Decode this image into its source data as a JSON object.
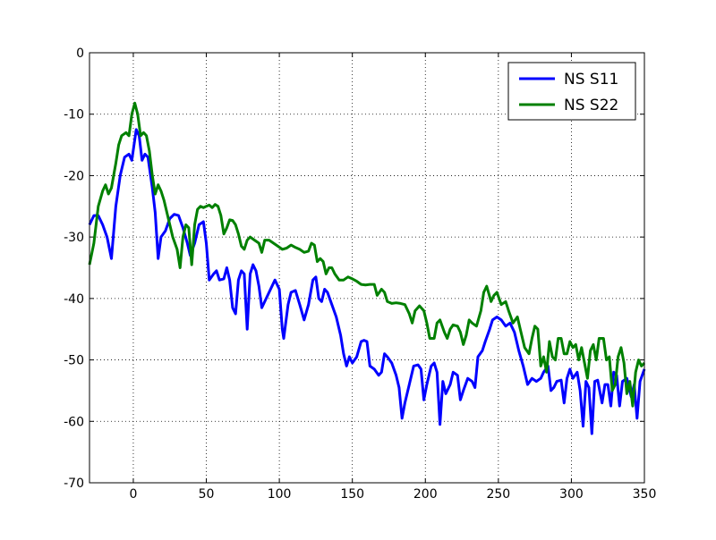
{
  "chart_data": {
    "type": "line",
    "xlim": [
      -30,
      350
    ],
    "xticks": [
      0,
      50,
      100,
      150,
      200,
      250,
      300,
      350
    ],
    "ylim": [
      -70,
      0
    ],
    "yticks": [
      -70,
      -60,
      -50,
      -40,
      -30,
      -20,
      -10,
      0
    ],
    "grid": true,
    "legend": "upper right",
    "series": [
      {
        "name": "NS S11",
        "color": "#0000ff",
        "x": [
          -30,
          -27,
          -24,
          -21,
          -18,
          -15,
          -12,
          -9,
          -6,
          -3,
          -1,
          2,
          4,
          6,
          8,
          10,
          13,
          15,
          17,
          19,
          22,
          25,
          28,
          31,
          34,
          37,
          39,
          42,
          45,
          48,
          50,
          52,
          55,
          57,
          59,
          62,
          64,
          66,
          68,
          70,
          72,
          74,
          76,
          78,
          80,
          82,
          84,
          86,
          88,
          91,
          94,
          97,
          100,
          102,
          103,
          106,
          108,
          111,
          114,
          117,
          120,
          123,
          125,
          127,
          129,
          131,
          133,
          136,
          139,
          142,
          144,
          146,
          148,
          150,
          153,
          156,
          158,
          160,
          162,
          165,
          168,
          170,
          172,
          174,
          177,
          180,
          182,
          184,
          186,
          189,
          192,
          195,
          197,
          199,
          201,
          204,
          206,
          208,
          210,
          212,
          214,
          217,
          219,
          222,
          224,
          226,
          229,
          232,
          234,
          236,
          239,
          241,
          244,
          246,
          249,
          252,
          255,
          258,
          261,
          264,
          267,
          270,
          273,
          276,
          279,
          281,
          284,
          286,
          288,
          290,
          293,
          295,
          297,
          299,
          301,
          304,
          306,
          308,
          310,
          312,
          314,
          316,
          318,
          321,
          323,
          325,
          327,
          329,
          331,
          333,
          335,
          338,
          341,
          343,
          345,
          347,
          350
        ],
        "values": [
          -28,
          -26.5,
          -26.5,
          -28,
          -30,
          -33.5,
          -25,
          -20,
          -17,
          -16.5,
          -17.5,
          -12.5,
          -13.5,
          -17.5,
          -16.5,
          -17,
          -22,
          -26,
          -33.5,
          -30,
          -29,
          -27,
          -26.3,
          -26.5,
          -28.5,
          -31,
          -33,
          -31,
          -28,
          -27.5,
          -31,
          -37,
          -36,
          -35.5,
          -37,
          -36.8,
          -35,
          -37,
          -41.5,
          -42.5,
          -37,
          -35.5,
          -36,
          -45,
          -36,
          -34.5,
          -35.5,
          -38,
          -41.5,
          -40,
          -38.5,
          -37,
          -38.5,
          -45,
          -46.5,
          -41,
          -39,
          -38.7,
          -41,
          -43.5,
          -41,
          -37,
          -36.5,
          -40,
          -40.5,
          -38.5,
          -39,
          -41,
          -43,
          -46,
          -49,
          -51,
          -49.5,
          -50.5,
          -49.5,
          -47,
          -46.8,
          -47,
          -51,
          -51.5,
          -52.5,
          -52,
          -49,
          -49.5,
          -50.5,
          -52.5,
          -54.5,
          -59.5,
          -57,
          -54,
          -51,
          -50.8,
          -51.5,
          -56.5,
          -54,
          -51,
          -50.5,
          -52,
          -60.5,
          -53.5,
          -55.5,
          -54,
          -52,
          -52.5,
          -56.5,
          -55,
          -53,
          -53.5,
          -54.5,
          -49.5,
          -48.5,
          -47,
          -45,
          -43.5,
          -43,
          -43.5,
          -44.5,
          -44,
          -45.5,
          -48.5,
          -51,
          -54,
          -53,
          -53.5,
          -53,
          -52,
          -51,
          -55,
          -54.5,
          -53.5,
          -53.3,
          -57,
          -53,
          -51.5,
          -53,
          -52,
          -55,
          -60.8,
          -53.5,
          -54.5,
          -62,
          -53.5,
          -53.3,
          -57,
          -54,
          -54,
          -57.5,
          -52,
          -52.5,
          -57.5,
          -53.5,
          -53,
          -56,
          -54,
          -59.5,
          -53.5,
          -51.5
        ]
      },
      {
        "name": "NS S22",
        "color": "#008000",
        "x": [
          -30,
          -27,
          -24,
          -21,
          -19,
          -17,
          -15,
          -12,
          -10,
          -8,
          -5,
          -3,
          -1,
          1,
          3,
          5,
          7,
          9,
          11,
          13,
          15,
          17,
          19,
          21,
          24,
          27,
          30,
          32,
          34,
          36,
          38,
          40,
          42,
          44,
          46,
          48,
          50,
          52,
          54,
          56,
          58,
          60,
          62,
          64,
          66,
          68,
          70,
          72,
          74,
          76,
          78,
          80,
          83,
          86,
          88,
          90,
          93,
          96,
          99,
          102,
          105,
          108,
          111,
          114,
          117,
          120,
          122,
          124,
          126,
          128,
          130,
          132,
          134,
          136,
          138,
          141,
          144,
          147,
          150,
          153,
          156,
          159,
          162,
          165,
          167,
          170,
          172,
          174,
          177,
          180,
          183,
          186,
          189,
          191,
          193,
          196,
          199,
          201,
          203,
          206,
          208,
          210,
          213,
          215,
          217,
          219,
          222,
          224,
          226,
          228,
          230,
          232,
          235,
          238,
          240,
          242,
          245,
          247,
          249,
          252,
          255,
          257,
          260,
          263,
          265,
          268,
          271,
          273,
          275,
          277,
          279,
          281,
          283,
          285,
          287,
          289,
          291,
          293,
          295,
          297,
          299,
          301,
          303,
          305,
          307,
          309,
          311,
          313,
          315,
          317,
          319,
          322,
          324,
          326,
          328,
          330,
          332,
          334,
          336,
          338,
          340,
          342,
          344,
          346,
          348,
          350
        ],
        "values": [
          -34.5,
          -31,
          -25,
          -22.5,
          -21.5,
          -23,
          -22,
          -18,
          -15,
          -13.5,
          -13,
          -13.5,
          -10,
          -8.2,
          -10,
          -13.5,
          -13,
          -13.5,
          -16,
          -20,
          -23,
          -21.5,
          -22.5,
          -24,
          -27,
          -30,
          -32,
          -35,
          -30,
          -28,
          -28.5,
          -34.5,
          -28,
          -25.5,
          -25,
          -25.2,
          -25,
          -24.8,
          -25.2,
          -24.7,
          -25,
          -26.5,
          -29.5,
          -28.5,
          -27.2,
          -27.3,
          -28,
          -29.5,
          -31.5,
          -32,
          -30.5,
          -30,
          -30.5,
          -31,
          -32.5,
          -30.5,
          -30.5,
          -31,
          -31.5,
          -32,
          -31.8,
          -31.3,
          -31.7,
          -32,
          -32.5,
          -32.3,
          -31,
          -31.3,
          -34,
          -33.5,
          -34,
          -36,
          -35,
          -35,
          -36,
          -37,
          -37,
          -36.5,
          -36.8,
          -37.2,
          -37.7,
          -37.8,
          -37.7,
          -37.7,
          -39.5,
          -38.5,
          -39,
          -40.5,
          -40.8,
          -40.7,
          -40.8,
          -41,
          -42.5,
          -44,
          -42,
          -41.2,
          -42,
          -44,
          -46.5,
          -46.5,
          -44,
          -43.5,
          -45.5,
          -46.5,
          -45,
          -44.3,
          -44.5,
          -45.5,
          -47.5,
          -46,
          -43.5,
          -44,
          -44.5,
          -42,
          -39,
          -38,
          -40.5,
          -39.5,
          -39,
          -41,
          -40.5,
          -42,
          -44,
          -43,
          -45,
          -48,
          -49,
          -46.5,
          -44.5,
          -45,
          -51,
          -49.5,
          -52,
          -47,
          -49.5,
          -50,
          -46.5,
          -46.5,
          -49,
          -49,
          -47,
          -48,
          -47.5,
          -50,
          -48,
          -50.5,
          -53,
          -48.5,
          -47.5,
          -50,
          -46.5,
          -46.5,
          -50,
          -49.5,
          -55,
          -54,
          -49.5,
          -48,
          -50.5,
          -55.5,
          -53.5,
          -57.5,
          -52,
          -50,
          -51,
          -50.5
        ]
      }
    ]
  }
}
